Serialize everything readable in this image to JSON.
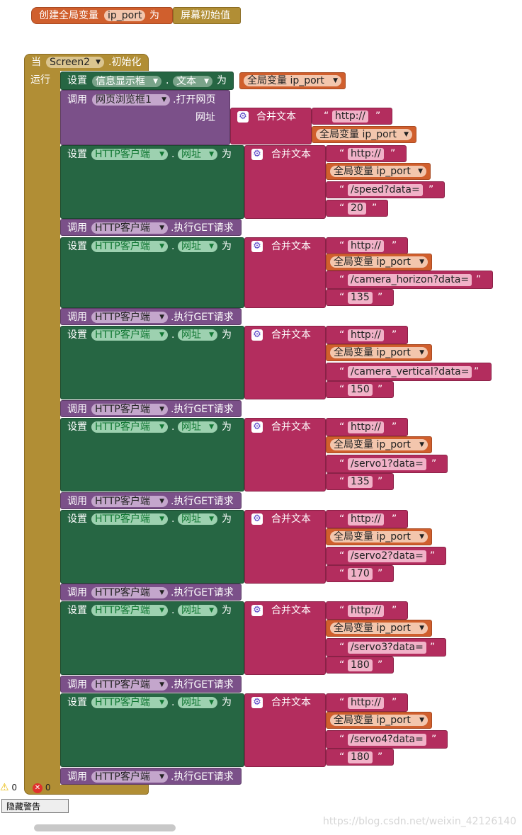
{
  "global": {
    "create_label": "创建全局变量",
    "name": "ip_port",
    "as_label": "为",
    "init_value": "屏幕初始值"
  },
  "event": {
    "when_label": "当",
    "screen": "Screen2",
    "event_name": ".初始化",
    "do_label": "运行"
  },
  "labels": {
    "set": "设置",
    "call": "调用",
    "as": "为",
    "dot": ".",
    "join": "合并文本",
    "global_var": "全局变量 ip_port",
    "url_param": "网址",
    "open_url": ".打开网页",
    "get_method": ".执行GET请求",
    "text_prop": "文本",
    "url_prop": "网址",
    "quote_open": "“",
    "quote_close": "”"
  },
  "components": {
    "label_component": "信息显示框",
    "web_viewer": "网页浏览框1",
    "http_client": "HTTP客户端"
  },
  "texts": {
    "http": "http://",
    "speed": "/speed?data=",
    "speed_val": "20",
    "cam_h": "/camera_horizon?data=",
    "cam_h_val": "135",
    "cam_v": "/camera_vertical?data=",
    "cam_v_val": "150",
    "servo1": "/servo1?data=",
    "servo1_val": "135",
    "servo2": "/servo2?data=",
    "servo2_val": "170",
    "servo3": "/servo3?data=",
    "servo3_val": "180",
    "servo4": "/servo4?data=",
    "servo4_val": "180"
  },
  "status": {
    "warnings": "0",
    "errors": "0",
    "hide_warnings": "隐藏警告"
  },
  "watermark": "https://blog.csdn.net/weixin_42126140",
  "colors": {
    "procedure": "#b18e35",
    "setter": "#266643",
    "caller": "#7b5089",
    "text": "#b32d5e",
    "variable": "#d05f2d"
  }
}
